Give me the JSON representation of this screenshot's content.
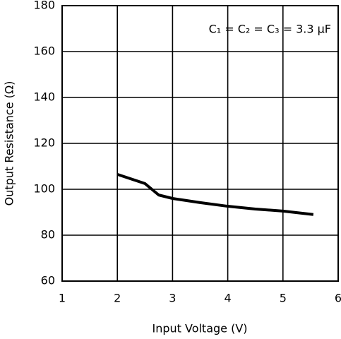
{
  "chart_data": {
    "type": "line",
    "xlabel": "Input Voltage (V)",
    "ylabel": "Output Resistance (Ω)",
    "annotation": "C₁ = C₂ = C₃ = 3.3 μF",
    "x": [
      2,
      2.5,
      2.75,
      3,
      3.5,
      4,
      4.5,
      5,
      5.55
    ],
    "values": [
      106.5,
      102.5,
      97.5,
      96,
      94.2,
      92.6,
      91.4,
      90.5,
      89
    ],
    "color": "#000000",
    "xlim": [
      1,
      6
    ],
    "xticks": [
      1,
      2,
      3,
      4,
      5,
      6
    ],
    "ylim": [
      60,
      180
    ],
    "yticks": [
      60,
      80,
      100,
      120,
      140,
      160,
      180
    ],
    "grid": true
  }
}
